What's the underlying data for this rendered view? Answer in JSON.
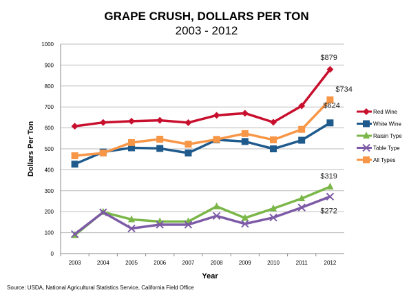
{
  "chart_data": {
    "type": "line",
    "title": "GRAPE CRUSH, DOLLARS PER TON",
    "subtitle": "2003 - 2012",
    "xlabel": "Year",
    "ylabel": "Dollars Per Ton",
    "ylim": [
      0,
      1000
    ],
    "yticks": [
      0,
      100,
      200,
      300,
      400,
      500,
      600,
      700,
      800,
      900,
      1000
    ],
    "grid": true,
    "legend_placement": "right",
    "categories": [
      "2003",
      "2004",
      "2005",
      "2006",
      "2007",
      "2008",
      "2009",
      "2010",
      "2011",
      "2012"
    ],
    "series": [
      {
        "name": "Red Wine",
        "color": "#c8102e",
        "marker": "diamond",
        "values": [
          608,
          626,
          632,
          636,
          625,
          660,
          670,
          627,
          705,
          879
        ]
      },
      {
        "name": "White Wine",
        "color": "#1f5a8c",
        "marker": "square",
        "values": [
          427,
          485,
          505,
          502,
          480,
          543,
          535,
          500,
          541,
          624
        ]
      },
      {
        "name": "Raisin Type",
        "color": "#7ab648",
        "marker": "triangle",
        "values": [
          88,
          198,
          163,
          153,
          153,
          225,
          170,
          215,
          263,
          319
        ]
      },
      {
        "name": "Table Type",
        "color": "#7d5ba6",
        "marker": "x",
        "values": [
          93,
          197,
          120,
          138,
          138,
          180,
          142,
          172,
          220,
          272
        ]
      },
      {
        "name": "All Types",
        "color": "#f79646",
        "marker": "square",
        "values": [
          467,
          480,
          530,
          546,
          522,
          545,
          573,
          543,
          593,
          734
        ]
      }
    ],
    "annotations": [
      {
        "text": "$879",
        "series": "Red Wine",
        "x": "2012"
      },
      {
        "text": "$734",
        "series": "All Types",
        "x": "2012"
      },
      {
        "text": "$624",
        "series": "White Wine",
        "x": "2012"
      },
      {
        "text": "$319",
        "series": "Raisin Type",
        "x": "2012"
      },
      {
        "text": "$272",
        "series": "Table Type",
        "x": "2012"
      }
    ],
    "source": "Source: USDA, National Agricultural Statistics Service, California Field Office"
  }
}
